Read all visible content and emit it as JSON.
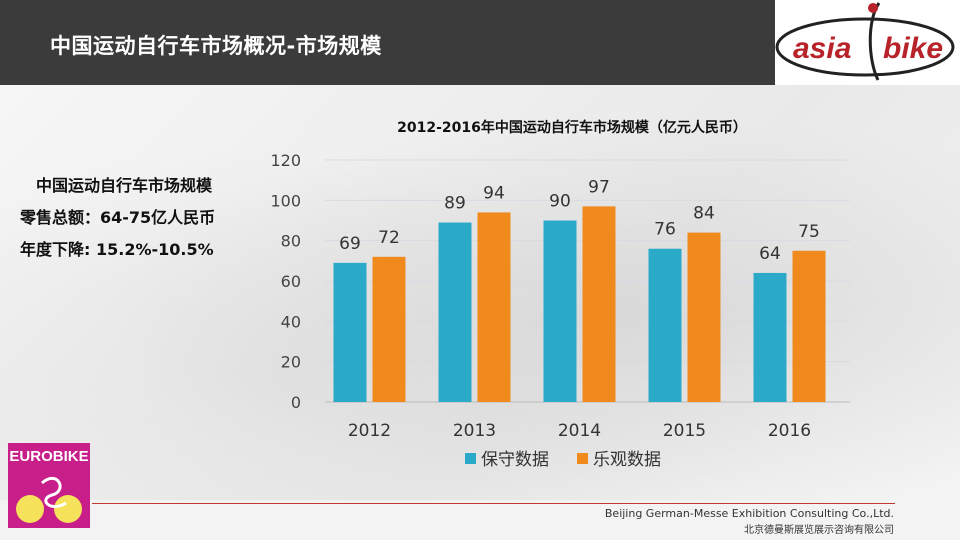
{
  "header": {
    "title": "中国运动自行车市场概况-市场规模"
  },
  "logo": {
    "text_left": "asia",
    "text_right": "bike"
  },
  "summary": {
    "line1": "中国运动自行车市场规模",
    "line2": "零售总额：64-75亿人民币",
    "line3": "年度下降: 15.2%-10.5%"
  },
  "chart_data": {
    "type": "bar",
    "title": "2012-2016年中国运动自行车市场规模（亿元人民币）",
    "categories": [
      "2012",
      "2013",
      "2014",
      "2015",
      "2016"
    ],
    "series": [
      {
        "name": "保守数据",
        "values": [
          69,
          89,
          90,
          76,
          64
        ],
        "color": "#2aa9c9"
      },
      {
        "name": "乐观数据",
        "values": [
          72,
          94,
          97,
          84,
          75
        ],
        "color": "#f08a1d"
      }
    ],
    "ylim": [
      0,
      120
    ],
    "yticks": [
      0,
      20,
      40,
      60,
      80,
      100,
      120
    ],
    "grid": true,
    "legend": "bottom"
  },
  "eurobike": {
    "label": "EUROBIKE"
  },
  "footer": {
    "company_en": "Beijing German-Messe Exhibition Consulting Co.,Ltd.",
    "company_cn": "北京德曼斯展览展示咨询有限公司"
  }
}
